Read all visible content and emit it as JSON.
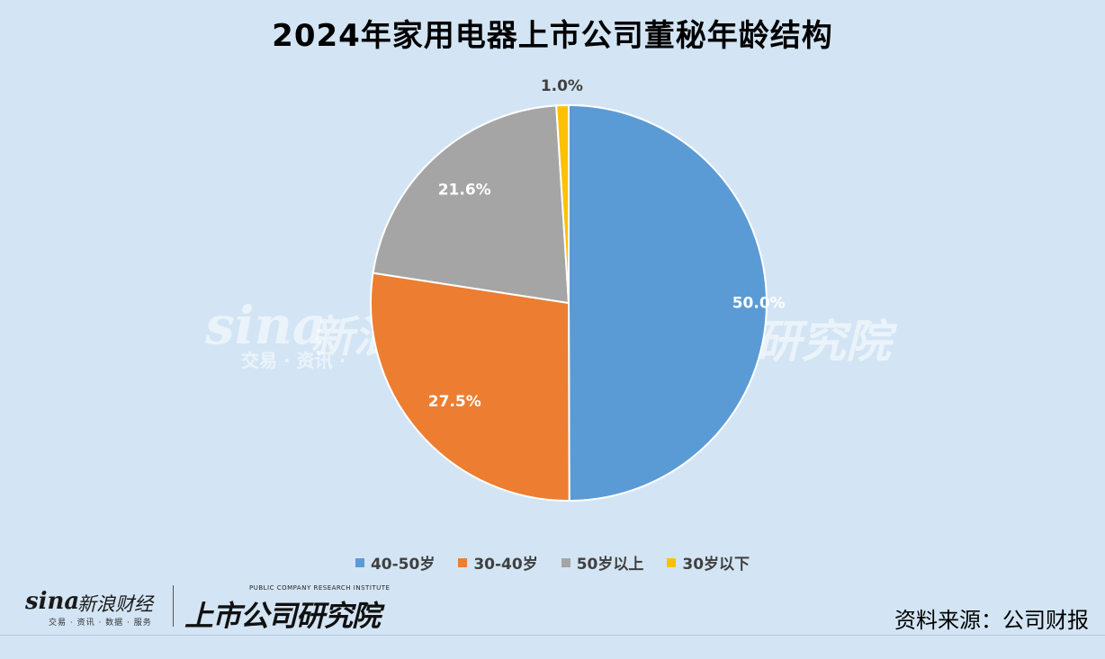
{
  "title": "2024年家用电器上市公司董秘年龄结构",
  "chart_data": {
    "type": "pie",
    "title": "2024年家用电器上市公司董秘年龄结构",
    "categories": [
      "40-50岁",
      "30-40岁",
      "50岁以上",
      "30岁以下"
    ],
    "values": [
      50.0,
      27.5,
      21.6,
      1.0
    ],
    "labels": [
      "50.0%",
      "27.5%",
      "21.6%",
      "1.0%"
    ],
    "colors": [
      "#5b9bd5",
      "#ed7d31",
      "#a5a5a5",
      "#ffc000"
    ],
    "start": "12 o'clock, clockwise",
    "legend_position": "bottom"
  },
  "legend": [
    {
      "label": "40-50岁",
      "color": "#5b9bd5"
    },
    {
      "label": "30-40岁",
      "color": "#ed7d31"
    },
    {
      "label": "50岁以上",
      "color": "#a5a5a5"
    },
    {
      "label": "30岁以下",
      "color": "#ffc000"
    }
  ],
  "footer": {
    "brand_logo": "sina",
    "brand_name": "新浪财经",
    "brand_tagline": "交易 · 资讯 · 数据 · 服务",
    "institute_en": "PUBLIC COMPANY RESEARCH INSTITUTE",
    "institute_cn": "上市公司研究院",
    "source": "资料来源：公司财报"
  },
  "watermark": {
    "logo": "sina",
    "name": "新浪",
    "tagline": "交易 · 资讯 ·",
    "institute": "研究院"
  }
}
